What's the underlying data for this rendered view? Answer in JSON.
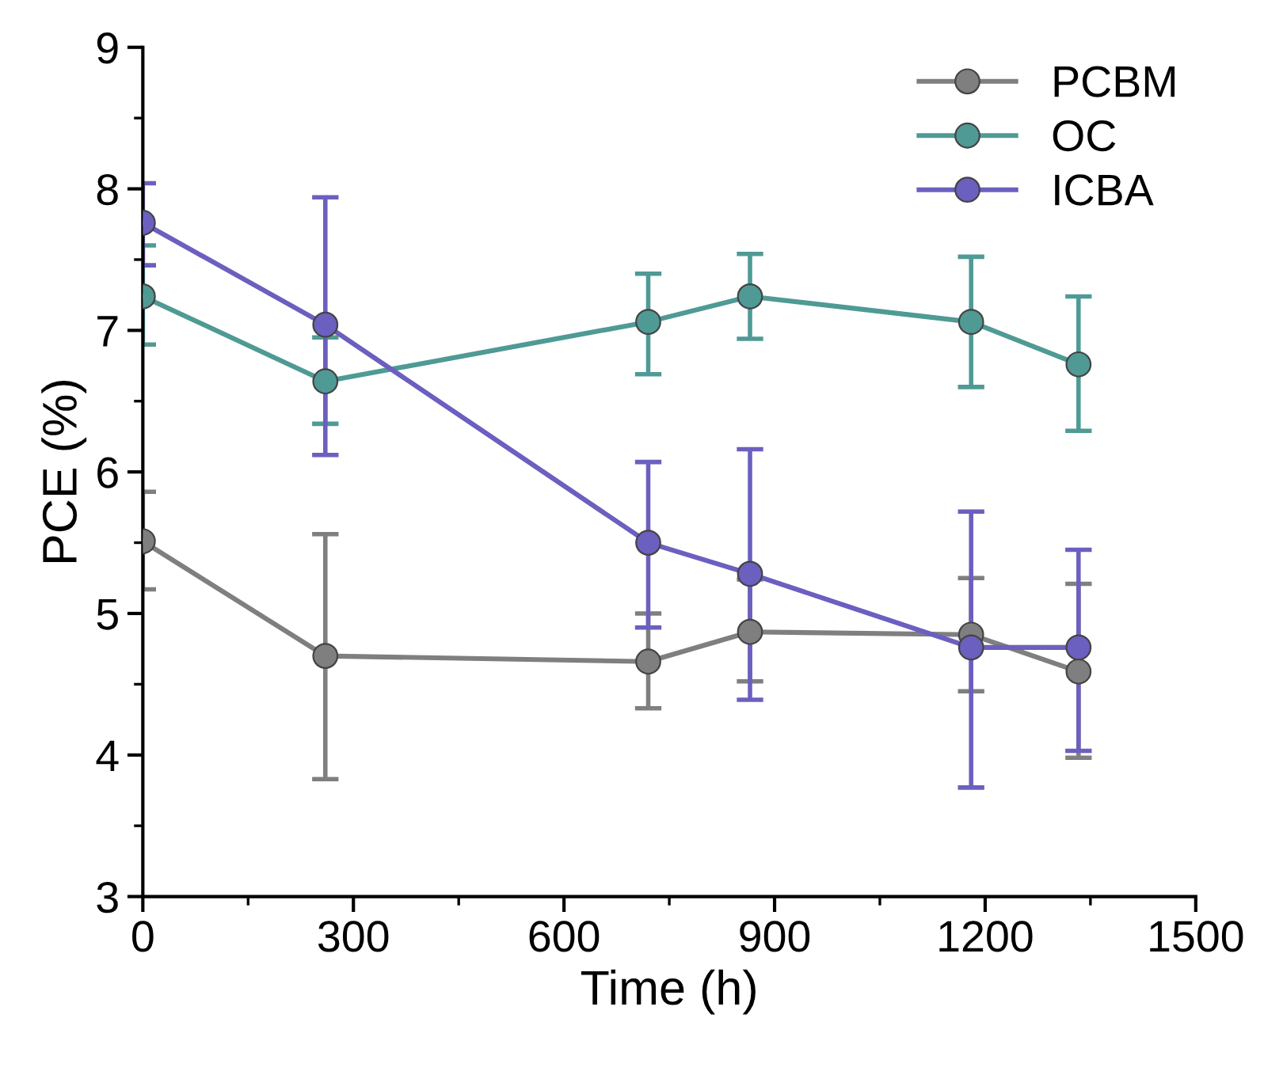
{
  "chart_data": {
    "type": "line",
    "xlabel": "Time (h)",
    "ylabel": "PCE (%)",
    "xlim": [
      0,
      1500
    ],
    "xticks": [
      0,
      300,
      600,
      900,
      1200,
      1500
    ],
    "ylim": [
      3,
      9
    ],
    "yticks": [
      3,
      4,
      5,
      6,
      7,
      8,
      9
    ],
    "x": [
      0,
      260,
      720,
      865,
      1180,
      1333
    ],
    "series": [
      {
        "name": "PCBM",
        "color": "#7f7f7f",
        "values": [
          5.51,
          4.7,
          4.66,
          4.87,
          4.85,
          4.59
        ],
        "errors": [
          [
            5.17,
            5.86
          ],
          [
            3.83,
            5.56
          ],
          [
            4.33,
            5.0
          ],
          [
            4.52,
            5.24
          ],
          [
            4.45,
            5.25
          ],
          [
            3.98,
            5.21
          ]
        ]
      },
      {
        "name": "OC",
        "color": "#4f9a94",
        "values": [
          7.24,
          6.64,
          7.06,
          7.24,
          7.06,
          6.76
        ],
        "errors": [
          [
            6.9,
            7.6
          ],
          [
            6.34,
            6.95
          ],
          [
            6.69,
            7.4
          ],
          [
            6.94,
            7.54
          ],
          [
            6.6,
            7.52
          ],
          [
            6.29,
            7.24
          ]
        ]
      },
      {
        "name": "ICBA",
        "color": "#6b5fbf",
        "values": [
          7.76,
          7.04,
          5.5,
          5.28,
          4.76,
          4.76
        ],
        "errors": [
          [
            7.46,
            8.04
          ],
          [
            6.12,
            7.94
          ],
          [
            4.9,
            6.07
          ],
          [
            4.39,
            6.16
          ],
          [
            3.77,
            5.72
          ],
          [
            4.03,
            5.45
          ]
        ]
      }
    ],
    "marker": "circle",
    "line_style": "solid",
    "legend": "top right",
    "grid": false
  }
}
